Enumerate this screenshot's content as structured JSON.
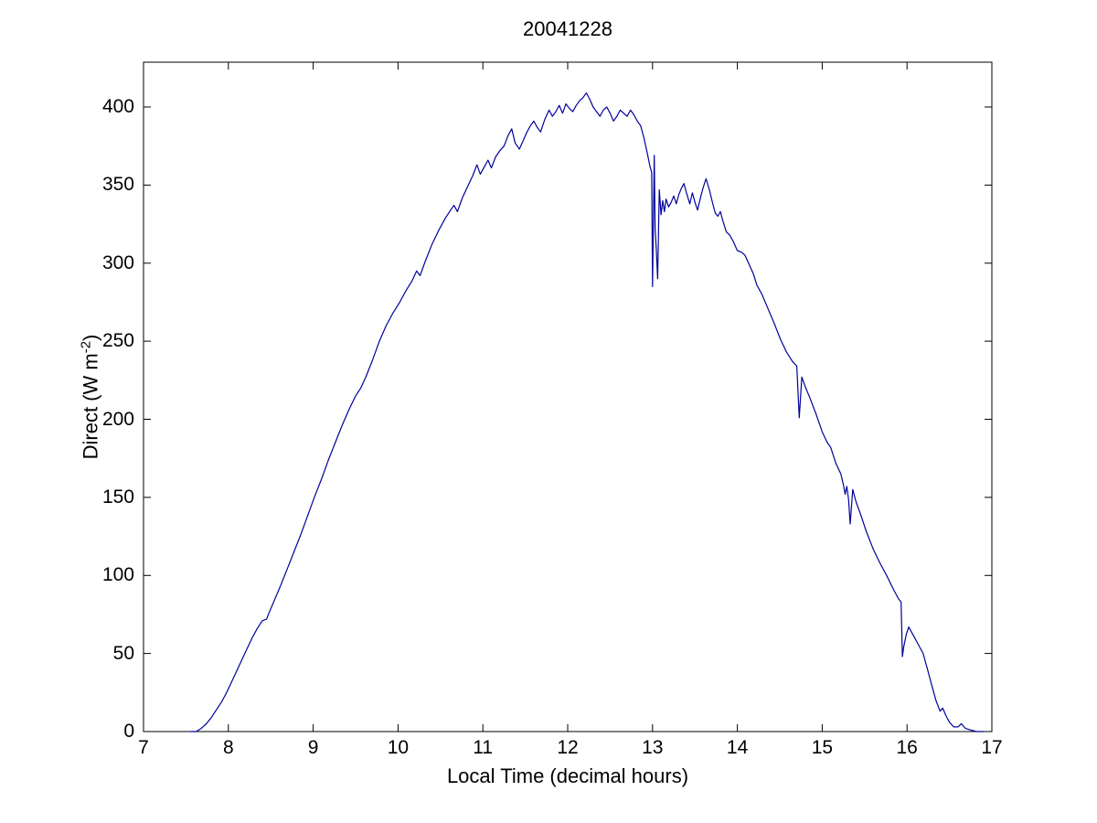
{
  "figure": {
    "title": "20041228",
    "xlabel": "Local Time (decimal hours)",
    "ylabel": {
      "prefix": "Direct (W m",
      "sup": "-2",
      "suffix": ")"
    }
  },
  "chart_data": {
    "type": "line",
    "title": "20041228",
    "xlabel": "Local Time (decimal hours)",
    "ylabel": "Direct (W m^-2)",
    "xlim": [
      7,
      17
    ],
    "ylim": [
      0,
      428.7
    ],
    "xticks": [
      7,
      8,
      9,
      10,
      11,
      12,
      13,
      14,
      15,
      16,
      17
    ],
    "yticks": [
      0,
      50,
      100,
      150,
      200,
      250,
      300,
      350,
      400
    ],
    "grid": false,
    "legend": "none",
    "line_color": "#00009B",
    "axes_color": "#000000",
    "background_color": "#ffffff",
    "series": [
      {
        "name": "direct-irradiance",
        "x": [
          7.55,
          7.62,
          7.68,
          7.74,
          7.8,
          7.86,
          7.92,
          7.98,
          8.04,
          8.1,
          8.16,
          8.22,
          8.28,
          8.34,
          8.4,
          8.45,
          8.48,
          8.55,
          8.62,
          8.7,
          8.78,
          8.86,
          8.94,
          9.02,
          9.1,
          9.18,
          9.26,
          9.34,
          9.42,
          9.5,
          9.56,
          9.62,
          9.7,
          9.78,
          9.86,
          9.94,
          10.02,
          10.1,
          10.16,
          10.22,
          10.26,
          10.32,
          10.4,
          10.48,
          10.56,
          10.62,
          10.66,
          10.7,
          10.76,
          10.82,
          10.88,
          10.93,
          10.97,
          11.02,
          11.06,
          11.1,
          11.15,
          11.2,
          11.25,
          11.3,
          11.34,
          11.38,
          11.43,
          11.48,
          11.52,
          11.56,
          11.6,
          11.64,
          11.68,
          11.73,
          11.78,
          11.82,
          11.86,
          11.9,
          11.94,
          11.98,
          12.02,
          12.06,
          12.1,
          12.14,
          12.18,
          12.22,
          12.26,
          12.3,
          12.34,
          12.38,
          12.42,
          12.46,
          12.5,
          12.54,
          12.58,
          12.62,
          12.66,
          12.7,
          12.74,
          12.78,
          12.82,
          12.86,
          12.9,
          12.94,
          12.97,
          12.99,
          13.0,
          13.02,
          13.03,
          13.045,
          13.06,
          13.08,
          13.1,
          13.12,
          13.14,
          13.16,
          13.19,
          13.22,
          13.25,
          13.28,
          13.31,
          13.34,
          13.37,
          13.4,
          13.44,
          13.47,
          13.5,
          13.53,
          13.57,
          13.6,
          13.63,
          13.67,
          13.71,
          13.74,
          13.77,
          13.8,
          13.83,
          13.87,
          13.91,
          13.95,
          14.0,
          14.05,
          14.09,
          14.14,
          14.19,
          14.23,
          14.29,
          14.36,
          14.43,
          14.51,
          14.58,
          14.65,
          14.7,
          14.73,
          14.76,
          14.8,
          14.86,
          14.93,
          15.0,
          15.06,
          15.1,
          15.16,
          15.22,
          15.25,
          15.27,
          15.29,
          15.31,
          15.33,
          15.36,
          15.4,
          15.46,
          15.52,
          15.6,
          15.68,
          15.76,
          15.84,
          15.9,
          15.93,
          15.945,
          15.96,
          15.99,
          16.02,
          16.05,
          16.09,
          16.14,
          16.19,
          16.24,
          16.29,
          16.34,
          16.39,
          16.42,
          16.46,
          16.5,
          16.55,
          16.6,
          16.64,
          16.69,
          16.75,
          16.82,
          16.9
        ],
        "y": [
          0,
          0,
          2,
          5,
          9,
          14,
          19,
          25,
          32,
          39,
          46,
          53,
          60,
          66,
          71,
          72,
          76,
          85,
          94,
          105,
          116,
          127,
          139,
          151,
          162,
          174,
          185,
          196,
          206,
          215,
          220,
          227,
          238,
          250,
          260,
          268,
          275,
          283,
          288,
          295,
          292,
          301,
          312,
          321,
          329,
          334,
          337,
          333,
          342,
          349,
          356,
          363,
          357,
          362,
          366,
          361,
          368,
          372,
          375,
          382,
          386,
          377,
          373,
          379,
          384,
          388,
          391,
          387,
          384,
          392,
          398,
          394,
          397,
          401,
          396,
          402,
          399,
          397,
          401,
          404,
          406,
          409,
          405,
          400,
          397,
          394,
          398,
          400,
          396,
          391,
          394,
          398,
          396,
          394,
          398,
          395,
          391,
          388,
          380,
          370,
          362,
          358,
          285,
          369,
          322,
          308,
          290,
          347,
          331,
          340,
          333,
          341,
          336,
          339,
          343,
          338,
          344,
          348,
          351,
          345,
          338,
          345,
          339,
          334,
          343,
          349,
          354,
          347,
          338,
          332,
          330,
          333,
          327,
          320,
          318,
          314,
          308,
          307,
          305,
          299,
          293,
          286,
          280,
          271,
          262,
          251,
          243,
          237,
          234,
          201,
          227,
          221,
          213,
          203,
          192,
          185,
          182,
          172,
          165,
          158,
          152,
          157,
          149,
          133,
          155,
          147,
          138,
          128,
          117,
          108,
          100,
          91,
          85,
          83,
          48,
          54,
          62,
          67,
          64,
          60,
          55,
          50,
          40,
          30,
          20,
          13,
          15,
          10,
          6,
          3,
          3,
          5,
          2,
          1,
          0,
          0
        ]
      }
    ]
  }
}
